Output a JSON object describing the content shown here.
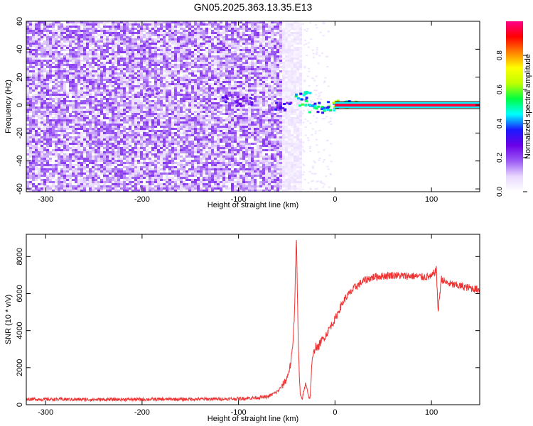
{
  "title": "GN05.2025.363.13.35.E13",
  "chart_data": [
    {
      "type": "heatmap",
      "xlabel": "Height of straight line (km)",
      "ylabel": "Frequency (Hz)",
      "xlim": [
        -320,
        150
      ],
      "ylim": [
        -62,
        60
      ],
      "x_ticks": [
        -300,
        -200,
        -100,
        0,
        100
      ],
      "y_ticks": [
        -60,
        -40,
        -20,
        0,
        20,
        40,
        60
      ],
      "colorbar": {
        "label": "Normalized spectral amplitude",
        "range": [
          0,
          1
        ],
        "ticks": [
          0.0,
          0.2,
          0.4,
          0.6,
          0.8
        ],
        "tick_labels": [
          "0.0",
          "0.2",
          "0.4",
          "0.6",
          "0.8"
        ],
        "colors": [
          "#ffffff",
          "#e8d8ff",
          "#9b59f5",
          "#6a00e8",
          "#1a1aff",
          "#00ffff",
          "#00ff40",
          "#c0ff00",
          "#ffff00",
          "#ff8000",
          "#ff0000",
          "#ff0088"
        ]
      },
      "noise_region_x": [
        -320,
        -35
      ],
      "noise_amplitude": 0.12,
      "carrier": {
        "x_start": 0,
        "x_end": 150,
        "frequency": 0,
        "amplitude": 0.95
      },
      "transition_blobs": [
        {
          "x": -55,
          "y": 0,
          "amplitude": 0.35
        },
        {
          "x": -35,
          "y": 8,
          "amplitude": 0.5
        },
        {
          "x": -30,
          "y": 2,
          "amplitude": 0.55
        },
        {
          "x": -20,
          "y": -2,
          "amplitude": 0.5
        },
        {
          "x": -10,
          "y": 0,
          "amplitude": 0.55
        },
        {
          "x": 5,
          "y": 1,
          "amplitude": 0.65
        },
        {
          "x": 15,
          "y": 2,
          "amplitude": 0.6
        },
        {
          "x": -110,
          "y": 5,
          "amplitude": 0.3
        },
        {
          "x": -95,
          "y": 3,
          "amplitude": 0.3
        },
        {
          "x": -190,
          "y": 10,
          "amplitude": 0.25
        }
      ]
    },
    {
      "type": "line",
      "xlabel": "Height of straight line (km)",
      "ylabel": "SNR (10 * v/v)",
      "xlim": [
        -320,
        150
      ],
      "ylim": [
        0,
        9200
      ],
      "x_ticks": [
        -300,
        -200,
        -100,
        0,
        100
      ],
      "y_ticks": [
        0,
        2000,
        4000,
        6000,
        8000
      ],
      "series": [
        {
          "color": "#ee3333",
          "x": [
            -320,
            -250,
            -150,
            -100,
            -70,
            -60,
            -55,
            -50,
            -46,
            -44,
            -42,
            -41,
            -40,
            -39,
            -38,
            -37,
            -36,
            -34,
            -32,
            -30,
            -28,
            -26,
            -24,
            -22,
            -20,
            -18,
            -15,
            -10,
            -5,
            0,
            5,
            10,
            15,
            20,
            25,
            30,
            40,
            50,
            60,
            70,
            80,
            90,
            100,
            105,
            107,
            110,
            115,
            120,
            130,
            140,
            150
          ],
          "y": [
            300,
            280,
            300,
            320,
            420,
            700,
            1000,
            1400,
            2200,
            3000,
            5000,
            7200,
            9100,
            6000,
            3200,
            1600,
            500,
            300,
            800,
            1200,
            600,
            250,
            2200,
            2800,
            3200,
            3000,
            3400,
            3700,
            4200,
            4600,
            5200,
            5700,
            6000,
            6300,
            6500,
            6700,
            6900,
            6950,
            7000,
            6950,
            6950,
            6900,
            6900,
            7300,
            5000,
            6800,
            6600,
            6500,
            6400,
            6300,
            6200
          ]
        }
      ]
    }
  ]
}
